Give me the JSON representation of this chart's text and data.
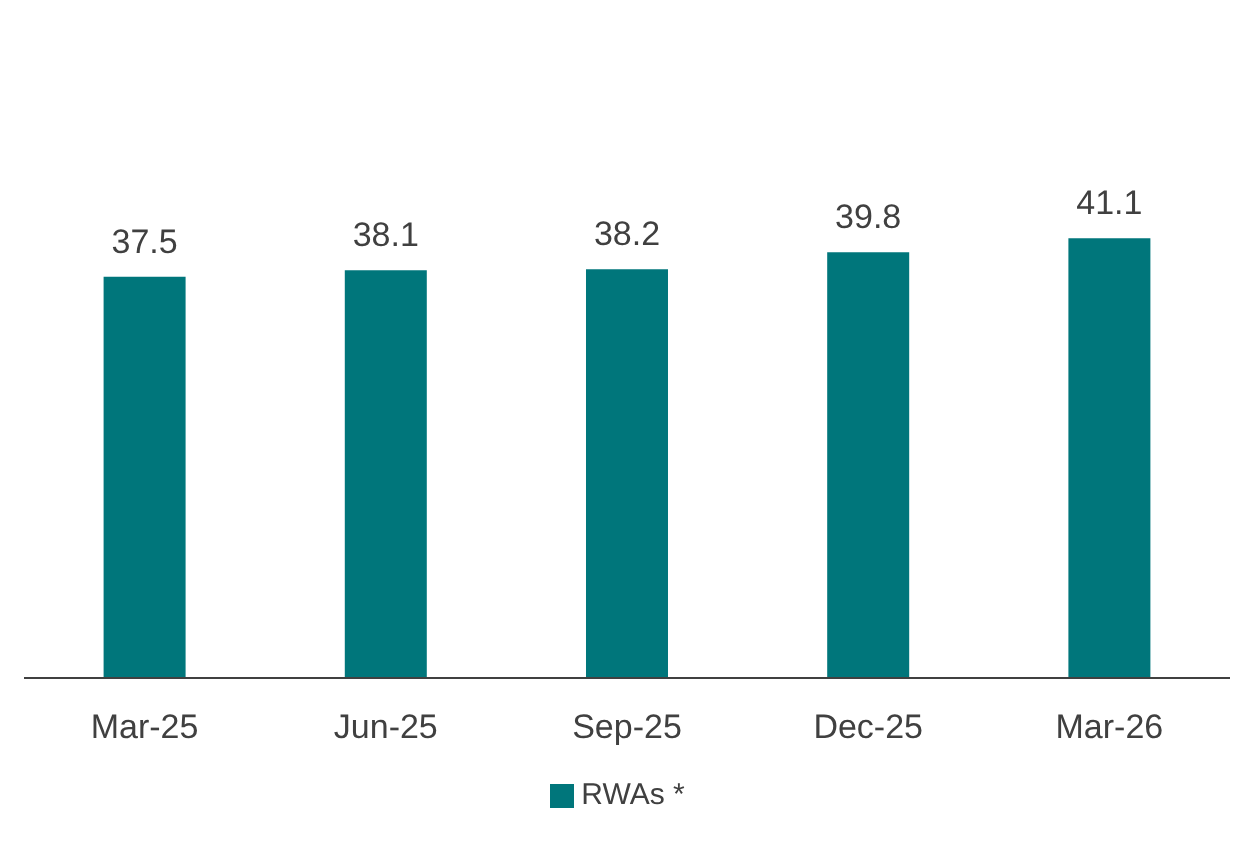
{
  "chart_data": {
    "type": "bar",
    "categories": [
      "Mar-25",
      "Jun-25",
      "Sep-25",
      "Dec-25",
      "Mar-26"
    ],
    "series": [
      {
        "name": "RWAs *",
        "color": "#00767b",
        "values": [
          37.5,
          38.1,
          38.2,
          39.8,
          41.1
        ]
      }
    ],
    "data_labels": true,
    "legend": "bottom",
    "grid": false,
    "tick_labels": "x"
  }
}
